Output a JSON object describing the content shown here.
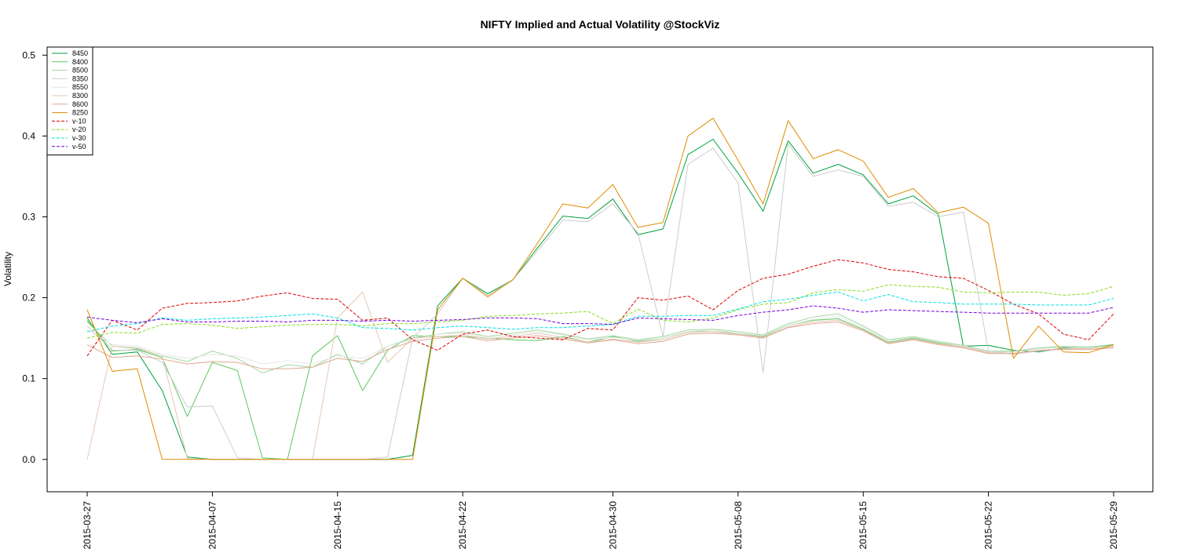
{
  "chart_data": {
    "type": "line",
    "title": "NIFTY Implied and Actual Volatility @StockViz",
    "xlabel": "",
    "ylabel": "Volatility",
    "ylim": [
      -0.04,
      0.51
    ],
    "yticks": [
      0.0,
      0.1,
      0.2,
      0.3,
      0.4,
      0.5
    ],
    "ytick_labels": [
      "0.0",
      "0.1",
      "0.2",
      "0.3",
      "0.4",
      "0.5"
    ],
    "x": [
      "2015-03-27",
      "2015-03-30",
      "2015-03-31",
      "2015-04-01",
      "2015-04-06",
      "2015-04-07",
      "2015-04-08",
      "2015-04-09",
      "2015-04-10",
      "2015-04-13",
      "2015-04-15",
      "2015-04-16",
      "2015-04-17",
      "2015-04-20",
      "2015-04-21",
      "2015-04-22",
      "2015-04-23",
      "2015-04-24",
      "2015-04-27",
      "2015-04-28",
      "2015-04-29",
      "2015-04-30",
      "2015-05-04",
      "2015-05-05",
      "2015-05-06",
      "2015-05-07",
      "2015-05-08",
      "2015-05-11",
      "2015-05-12",
      "2015-05-13",
      "2015-05-14",
      "2015-05-15",
      "2015-05-18",
      "2015-05-19",
      "2015-05-20",
      "2015-05-21",
      "2015-05-22",
      "2015-05-25",
      "2015-05-26",
      "2015-05-27",
      "2015-05-28",
      "2015-05-29"
    ],
    "xtick_labels": [
      {
        "label": "2015-03-27",
        "x": "2015-03-27"
      },
      {
        "label": "2015-04-07",
        "x": "2015-04-07"
      },
      {
        "label": "2015-04-15",
        "x": "2015-04-15"
      },
      {
        "label": "2015-04-22",
        "x": "2015-04-22"
      },
      {
        "label": "2015-04-30",
        "x": "2015-04-30"
      },
      {
        "label": "2015-05-08",
        "x": "2015-05-08"
      },
      {
        "label": "2015-05-15",
        "x": "2015-05-15"
      },
      {
        "label": "2015-05-22",
        "x": "2015-05-22"
      },
      {
        "label": "2015-05-29",
        "x": "2015-05-29"
      }
    ],
    "legend_position": "top-left",
    "grid": false,
    "series": [
      {
        "name": "8450",
        "color": "#00a03c",
        "dash": "solid",
        "values": [
          0.175,
          0.13,
          0.133,
          0.085,
          0.003,
          0,
          0,
          0,
          0,
          0,
          0,
          0,
          0,
          0.005,
          0.19,
          0.224,
          0.205,
          0.222,
          0.262,
          0.301,
          0.298,
          0.322,
          0.278,
          0.285,
          0.377,
          0.396,
          0.354,
          0.307,
          0.394,
          0.354,
          0.365,
          0.352,
          0.316,
          0.326,
          0.303,
          0.14,
          0.141,
          0.135,
          0.133,
          0.138,
          0.139,
          0.141
        ]
      },
      {
        "name": "8400",
        "color": "#5cc85c",
        "dash": "solid",
        "values": [
          0.172,
          0.134,
          0.136,
          0.126,
          0.053,
          0.12,
          0.11,
          0.002,
          0,
          0.128,
          0.153,
          0.085,
          0.135,
          0.153,
          0.152,
          0.152,
          0.15,
          0.148,
          0.147,
          0.152,
          0.145,
          0.152,
          0.146,
          0.15,
          0.158,
          0.158,
          0.156,
          0.152,
          0.166,
          0.172,
          0.174,
          0.161,
          0.145,
          0.15,
          0.144,
          0.14,
          0.133,
          0.133,
          0.137,
          0.139,
          0.139,
          0.142
        ]
      },
      {
        "name": "8500",
        "color": "#a0d8a0",
        "dash": "solid",
        "values": [
          0.17,
          0.14,
          0.137,
          0.128,
          0.121,
          0.134,
          0.125,
          0.107,
          0.117,
          0.114,
          0.13,
          0.118,
          0.14,
          0.15,
          0.155,
          0.158,
          0.152,
          0.156,
          0.16,
          0.155,
          0.149,
          0.153,
          0.148,
          0.152,
          0.16,
          0.161,
          0.158,
          0.154,
          0.168,
          0.176,
          0.18,
          0.165,
          0.148,
          0.152,
          0.146,
          0.141,
          0.134,
          0.134,
          0.138,
          0.14,
          0.139,
          0.141
        ]
      },
      {
        "name": "8350",
        "color": "#cccccc",
        "dash": "solid",
        "values": [
          0.165,
          0.135,
          0.135,
          0.12,
          0.065,
          0.066,
          0.002,
          0,
          0,
          0,
          0,
          0,
          0.003,
          0.15,
          0.18,
          0.224,
          0.203,
          0.222,
          0.258,
          0.296,
          0.294,
          0.316,
          0.28,
          0.152,
          0.365,
          0.385,
          0.342,
          0.107,
          0.39,
          0.35,
          0.358,
          0.35,
          0.313,
          0.318,
          0.3,
          0.306,
          0.134,
          0.13,
          0.134,
          0.137,
          0.138,
          0.14
        ]
      },
      {
        "name": "8550",
        "color": "#e6e6e6",
        "dash": "solid",
        "values": [
          0.16,
          0.142,
          0.14,
          0.13,
          0.125,
          0.13,
          0.128,
          0.118,
          0.122,
          0.118,
          0.128,
          0.125,
          0.14,
          0.148,
          0.155,
          0.156,
          0.15,
          0.154,
          0.158,
          0.154,
          0.148,
          0.151,
          0.147,
          0.15,
          0.158,
          0.16,
          0.156,
          0.153,
          0.166,
          0.173,
          0.177,
          0.163,
          0.147,
          0.151,
          0.145,
          0.14,
          0.133,
          0.133,
          0.137,
          0.139,
          0.138,
          0.14
        ]
      },
      {
        "name": "8300",
        "color": "#e6c8b4",
        "dash": "solid",
        "values": [
          0.0,
          0.14,
          0.138,
          0.128,
          0.001,
          0,
          0,
          0,
          0,
          0,
          0.175,
          0.207,
          0.12,
          0.15,
          0.152,
          0.154,
          0.149,
          0.152,
          0.156,
          0.151,
          0.145,
          0.149,
          0.145,
          0.148,
          0.157,
          0.158,
          0.155,
          0.151,
          0.164,
          0.17,
          0.172,
          0.16,
          0.144,
          0.149,
          0.143,
          0.139,
          0.132,
          0.131,
          0.135,
          0.137,
          0.137,
          0.139
        ]
      },
      {
        "name": "8600",
        "color": "#e0a890",
        "dash": "solid",
        "values": [
          0.142,
          0.126,
          0.128,
          0.124,
          0.118,
          0.121,
          0.12,
          0.112,
          0.112,
          0.114,
          0.125,
          0.121,
          0.136,
          0.146,
          0.15,
          0.152,
          0.147,
          0.15,
          0.153,
          0.149,
          0.144,
          0.148,
          0.143,
          0.146,
          0.155,
          0.156,
          0.154,
          0.15,
          0.163,
          0.168,
          0.17,
          0.159,
          0.143,
          0.148,
          0.142,
          0.138,
          0.131,
          0.131,
          0.135,
          0.136,
          0.136,
          0.138
        ]
      },
      {
        "name": "8250",
        "color": "#e08c00",
        "dash": "solid",
        "values": [
          0.185,
          0.109,
          0.112,
          0.0,
          0,
          0,
          0,
          0,
          0,
          0,
          0,
          0,
          0,
          0,
          0.185,
          0.224,
          0.201,
          0.222,
          0.268,
          0.316,
          0.311,
          0.34,
          0.287,
          0.293,
          0.4,
          0.422,
          0.37,
          0.316,
          0.419,
          0.372,
          0.383,
          0.369,
          0.324,
          0.335,
          0.305,
          0.312,
          0.292,
          0.125,
          0.165,
          0.133,
          0.132,
          0.142
        ]
      },
      {
        "name": "v-10",
        "color": "#dd0000",
        "dash": "dashed",
        "values": [
          0.128,
          0.172,
          0.16,
          0.187,
          0.193,
          0.194,
          0.196,
          0.202,
          0.206,
          0.199,
          0.198,
          0.172,
          0.175,
          0.148,
          0.135,
          0.155,
          0.16,
          0.152,
          0.15,
          0.148,
          0.162,
          0.16,
          0.2,
          0.197,
          0.202,
          0.185,
          0.209,
          0.224,
          0.229,
          0.239,
          0.247,
          0.243,
          0.235,
          0.232,
          0.226,
          0.224,
          0.209,
          0.192,
          0.18,
          0.155,
          0.148,
          0.18
        ]
      },
      {
        "name": "v-20",
        "color": "#88dd22",
        "dash": "dashed",
        "values": [
          0.15,
          0.157,
          0.156,
          0.167,
          0.168,
          0.166,
          0.162,
          0.164,
          0.166,
          0.167,
          0.167,
          0.165,
          0.168,
          0.168,
          0.17,
          0.172,
          0.177,
          0.178,
          0.18,
          0.181,
          0.183,
          0.168,
          0.186,
          0.172,
          0.17,
          0.175,
          0.185,
          0.192,
          0.194,
          0.206,
          0.21,
          0.208,
          0.216,
          0.214,
          0.213,
          0.207,
          0.206,
          0.207,
          0.207,
          0.203,
          0.205,
          0.214
        ]
      },
      {
        "name": "v-30",
        "color": "#00e0e0",
        "dash": "dashed",
        "values": [
          0.158,
          0.165,
          0.168,
          0.175,
          0.172,
          0.174,
          0.175,
          0.176,
          0.178,
          0.18,
          0.175,
          0.163,
          0.162,
          0.16,
          0.163,
          0.165,
          0.163,
          0.161,
          0.163,
          0.163,
          0.165,
          0.167,
          0.177,
          0.177,
          0.178,
          0.178,
          0.186,
          0.195,
          0.198,
          0.203,
          0.207,
          0.196,
          0.204,
          0.195,
          0.194,
          0.192,
          0.192,
          0.192,
          0.191,
          0.191,
          0.191,
          0.199
        ]
      },
      {
        "name": "v-50",
        "color": "#7700dd",
        "dash": "dashed",
        "values": [
          0.176,
          0.172,
          0.169,
          0.174,
          0.17,
          0.17,
          0.171,
          0.171,
          0.17,
          0.172,
          0.172,
          0.171,
          0.172,
          0.171,
          0.172,
          0.173,
          0.175,
          0.175,
          0.174,
          0.168,
          0.168,
          0.167,
          0.175,
          0.174,
          0.173,
          0.172,
          0.178,
          0.182,
          0.185,
          0.19,
          0.187,
          0.182,
          0.185,
          0.184,
          0.183,
          0.182,
          0.181,
          0.181,
          0.181,
          0.181,
          0.181,
          0.188
        ]
      }
    ]
  }
}
